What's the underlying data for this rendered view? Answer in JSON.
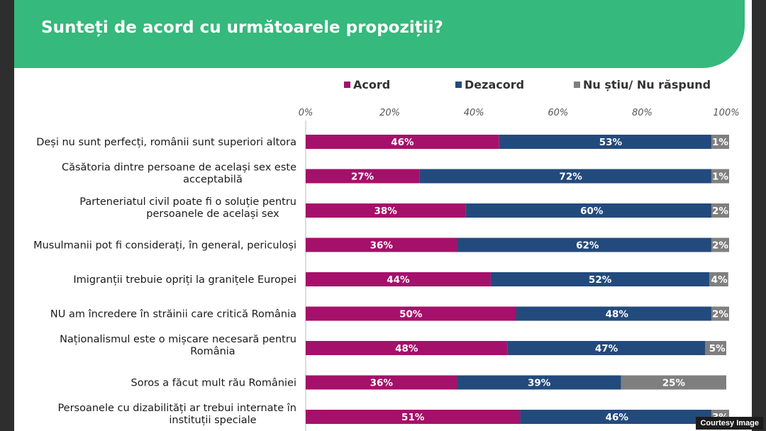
{
  "header": {
    "title": "Sunteți de acord cu următoarele propoziții?"
  },
  "courtesy": "Courtesy Image",
  "colors": {
    "header": "#35b97c",
    "acord": "#a5106a",
    "dezacord": "#234a7d",
    "nustiu": "#7f7f7f"
  },
  "chart_data": {
    "type": "bar",
    "orientation": "horizontal",
    "stacked": true,
    "xlim": [
      0,
      100
    ],
    "ticks": [
      "0%",
      "20%",
      "40%",
      "60%",
      "80%",
      "100%"
    ],
    "legend_position": "top",
    "grid": false,
    "categories": [
      [
        "Deși nu sunt perfecți,  românii sunt superiori altora"
      ],
      [
        "Căsătoria dintre persoane de același sex este",
        "acceptabilă"
      ],
      [
        "Parteneriatul civil poate fi o soluție pentru",
        "persoanele de același sex"
      ],
      [
        "Musulmanii pot fi considerați, în general, periculoși"
      ],
      [
        "Imigranții trebuie opriți la granițele Europei"
      ],
      [
        "NU am încredere în străinii care critică România"
      ],
      [
        "Naționalismul este o mișcare necesară pentru",
        "România"
      ],
      [
        "Soros a făcut mult rău României"
      ],
      [
        "Persoanele cu dizabilități ar trebui internate în",
        "instituții speciale"
      ]
    ],
    "series": [
      {
        "name": "Acord",
        "color": "#a5106a",
        "values": [
          46,
          27,
          38,
          36,
          44,
          50,
          48,
          36,
          51
        ]
      },
      {
        "name": "Dezacord",
        "color": "#234a7d",
        "values": [
          53,
          72,
          60,
          62,
          52,
          48,
          47,
          39,
          46
        ]
      },
      {
        "name": "Nu știu/ Nu răspund",
        "color": "#7f7f7f",
        "values": [
          1,
          1,
          2,
          2,
          4,
          2,
          5,
          25,
          3
        ]
      }
    ]
  }
}
